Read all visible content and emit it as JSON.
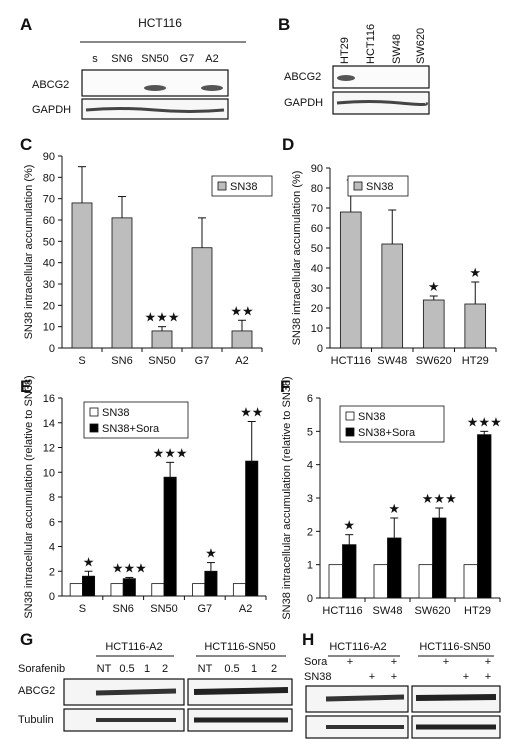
{
  "panels": {
    "A": {
      "letter": "A",
      "cell_line": "HCT116",
      "lanes": [
        "s",
        "SN6",
        "SN50",
        "G7",
        "A2"
      ],
      "rows": [
        "ABCG2",
        "GAPDH"
      ]
    },
    "B": {
      "letter": "B",
      "lanes": [
        "HT29",
        "HCT116",
        "SW48",
        "SW620"
      ],
      "rows": [
        "ABCG2",
        "GAPDH"
      ]
    },
    "G": {
      "letter": "G",
      "groups": [
        "HCT116-A2",
        "HCT116-SN50"
      ],
      "row_label": "Sorafenib",
      "doses": [
        "NT",
        "0.5",
        "1",
        "2",
        "NT",
        "0.5",
        "1",
        "2"
      ],
      "rows": [
        "ABCG2",
        "Tubulin"
      ]
    },
    "H": {
      "letter": "H",
      "groups": [
        "HCT116-A2",
        "HCT116-SN50"
      ],
      "row_labels": [
        "Sora",
        "SN38"
      ],
      "sora_marks": [
        "",
        "+",
        "",
        "+",
        "",
        "+",
        "",
        "+"
      ],
      "sn38_marks": [
        "",
        "",
        "+",
        "+",
        "",
        "",
        "+",
        "+"
      ]
    }
  },
  "chart_data": [
    {
      "panel": "C",
      "type": "bar",
      "ylabel": "SN38 intracellular accumulation (%)",
      "ylim": [
        0,
        90
      ],
      "yticks": [
        0,
        10,
        20,
        30,
        40,
        50,
        60,
        70,
        80,
        90
      ],
      "categories": [
        "S",
        "SN6",
        "SN50",
        "G7",
        "A2"
      ],
      "series": [
        {
          "name": "SN38",
          "color": "#bdbdbd",
          "values": [
            68,
            61,
            8,
            47,
            8
          ],
          "errors": [
            17,
            10,
            2,
            14,
            5
          ]
        }
      ],
      "stars": [
        "",
        "",
        "★★★",
        "",
        "★★"
      ],
      "legend": "top-right"
    },
    {
      "panel": "D",
      "type": "bar",
      "ylabel": "SN38 intracellular accumulation (%)",
      "ylim": [
        0,
        90
      ],
      "yticks": [
        0,
        10,
        20,
        30,
        40,
        50,
        60,
        70,
        80,
        90
      ],
      "categories": [
        "HCT116",
        "SW48",
        "SW620",
        "HT29"
      ],
      "series": [
        {
          "name": "SN38",
          "color": "#bdbdbd",
          "values": [
            68,
            52,
            24,
            22
          ],
          "errors": [
            16,
            17,
            2,
            11
          ]
        }
      ],
      "stars": [
        "",
        "",
        "★",
        "★"
      ],
      "legend": "top-left"
    },
    {
      "panel": "E",
      "type": "bar",
      "ylabel": "SN38 intracellular accumulation (relative to SN38)",
      "ylim": [
        0,
        16
      ],
      "yticks": [
        0,
        2,
        4,
        6,
        8,
        10,
        12,
        14,
        16
      ],
      "categories": [
        "S",
        "SN6",
        "SN50",
        "G7",
        "A2"
      ],
      "series": [
        {
          "name": "SN38",
          "color": "#ffffff",
          "values": [
            1,
            1,
            1,
            1,
            1
          ],
          "errors": [
            0,
            0,
            0,
            0,
            0
          ]
        },
        {
          "name": "SN38+Sora",
          "color": "#000000",
          "values": [
            1.6,
            1.4,
            9.6,
            2.0,
            10.9
          ],
          "errors": [
            0.4,
            0.1,
            1.2,
            0.7,
            3.2
          ]
        }
      ],
      "stars": [
        "★",
        "★★★",
        "★★★",
        "★",
        "★★"
      ],
      "legend": "top-left"
    },
    {
      "panel": "F",
      "type": "bar",
      "ylabel": "SN38 intracellular accumulation (relative to SN38)",
      "ylim": [
        0,
        6
      ],
      "yticks": [
        0,
        1,
        2,
        3,
        4,
        5,
        6
      ],
      "categories": [
        "HCT116",
        "SW48",
        "SW620",
        "HT29"
      ],
      "series": [
        {
          "name": "SN38",
          "color": "#ffffff",
          "values": [
            1,
            1,
            1,
            1
          ],
          "errors": [
            0,
            0,
            0,
            0
          ]
        },
        {
          "name": "SN38+Sora",
          "color": "#000000",
          "values": [
            1.6,
            1.8,
            2.4,
            4.9
          ],
          "errors": [
            0.3,
            0.6,
            0.3,
            0.1
          ]
        }
      ],
      "stars": [
        "★",
        "★",
        "★★★",
        "★★★"
      ],
      "legend": "top-left"
    }
  ]
}
